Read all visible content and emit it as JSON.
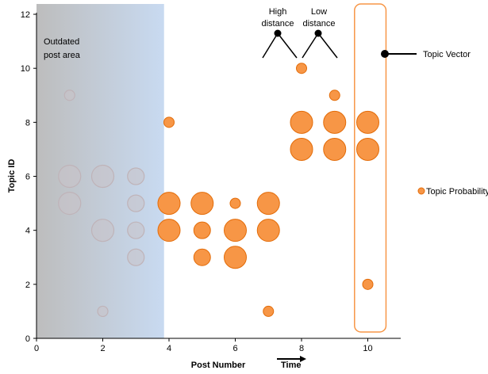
{
  "chart_data": {
    "type": "scatter",
    "title": "",
    "xlabel": "Post Number",
    "ylabel": "Topic ID",
    "xlim": [
      0,
      11
    ],
    "ylim": [
      0,
      12
    ],
    "x_ticks": [
      0,
      2,
      4,
      6,
      8,
      10
    ],
    "y_ticks": [
      0,
      2,
      4,
      6,
      8,
      10,
      12
    ],
    "grid": false,
    "legend": {
      "label": "Topic Probability",
      "position": "right"
    },
    "colors": {
      "point_fill": "#f79646",
      "point_stroke": "#e36c09",
      "faded_fill": "#c9c3c8",
      "faded_stroke": "#bfb3b8",
      "outdated_from": "#bdbdbd",
      "outdated_to": "#c8daf1",
      "vector_box": "#f79646"
    },
    "points": [
      {
        "x": 1,
        "y": 9,
        "size": "small",
        "faded": true
      },
      {
        "x": 1,
        "y": 6,
        "size": "large",
        "faded": true
      },
      {
        "x": 1,
        "y": 5,
        "size": "large",
        "faded": true
      },
      {
        "x": 2,
        "y": 6,
        "size": "large",
        "faded": true
      },
      {
        "x": 2,
        "y": 4,
        "size": "large",
        "faded": true
      },
      {
        "x": 2,
        "y": 1,
        "size": "small",
        "faded": true
      },
      {
        "x": 3,
        "y": 6,
        "size": "medium",
        "faded": true
      },
      {
        "x": 3,
        "y": 5,
        "size": "medium",
        "faded": true
      },
      {
        "x": 3,
        "y": 4,
        "size": "medium",
        "faded": true
      },
      {
        "x": 3,
        "y": 3,
        "size": "medium",
        "faded": true
      },
      {
        "x": 4,
        "y": 8,
        "size": "small",
        "faded": false
      },
      {
        "x": 4,
        "y": 5,
        "size": "large",
        "faded": false
      },
      {
        "x": 4,
        "y": 4,
        "size": "large",
        "faded": false
      },
      {
        "x": 5,
        "y": 5,
        "size": "large",
        "faded": false
      },
      {
        "x": 5,
        "y": 4,
        "size": "medium",
        "faded": false
      },
      {
        "x": 5,
        "y": 3,
        "size": "medium",
        "faded": false
      },
      {
        "x": 6,
        "y": 5,
        "size": "small",
        "faded": false
      },
      {
        "x": 6,
        "y": 4,
        "size": "large",
        "faded": false
      },
      {
        "x": 6,
        "y": 3,
        "size": "large",
        "faded": false
      },
      {
        "x": 7,
        "y": 5,
        "size": "large",
        "faded": false
      },
      {
        "x": 7,
        "y": 4,
        "size": "large",
        "faded": false
      },
      {
        "x": 7,
        "y": 1,
        "size": "small",
        "faded": false
      },
      {
        "x": 8,
        "y": 10,
        "size": "small",
        "faded": false
      },
      {
        "x": 8,
        "y": 8,
        "size": "large",
        "faded": false
      },
      {
        "x": 8,
        "y": 7,
        "size": "large",
        "faded": false
      },
      {
        "x": 9,
        "y": 9,
        "size": "small",
        "faded": false
      },
      {
        "x": 9,
        "y": 8,
        "size": "large",
        "faded": false
      },
      {
        "x": 9,
        "y": 7,
        "size": "large",
        "faded": false
      },
      {
        "x": 10,
        "y": 8,
        "size": "large",
        "faded": false
      },
      {
        "x": 10,
        "y": 7,
        "size": "large",
        "faded": false
      },
      {
        "x": 10,
        "y": 2,
        "size": "small",
        "faded": false
      }
    ],
    "outdated_region": {
      "x_from": 0,
      "x_to": 3.85,
      "label": [
        "Outdated",
        "post area"
      ]
    },
    "topic_vector": {
      "x_from": 9.6,
      "x_to": 10.55,
      "label": "Topic Vector"
    },
    "annotations": {
      "high_distance": [
        "High",
        "distance"
      ],
      "low_distance": [
        "Low",
        "distance"
      ],
      "time_label": "Time"
    }
  }
}
